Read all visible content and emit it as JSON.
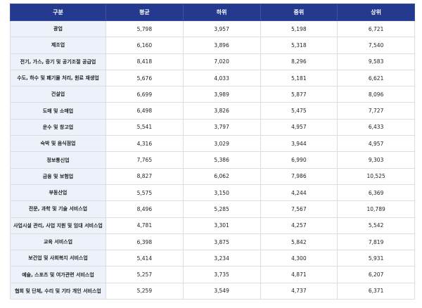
{
  "table": {
    "header": [
      "구분",
      "평균",
      "하위",
      "중위",
      "상위"
    ],
    "rows": [
      [
        "광업",
        "5,798",
        "3,957",
        "5,198",
        "6,721"
      ],
      [
        "제조업",
        "6,160",
        "3,896",
        "5,318",
        "7,540"
      ],
      [
        "전기, 가스, 증기 및 공기조절 공급업",
        "8,418",
        "7,020",
        "8,296",
        "9,583"
      ],
      [
        "수도, 하수 및 폐기물 처리, 원료 재생업",
        "5,676",
        "4,033",
        "5,181",
        "6,621"
      ],
      [
        "건설업",
        "6,699",
        "3,989",
        "5,877",
        "8,096"
      ],
      [
        "도매 및 소매업",
        "6,498",
        "3,826",
        "5,475",
        "7,727"
      ],
      [
        "운수 및 창고업",
        "5,541",
        "3,797",
        "4,957",
        "6,433"
      ],
      [
        "숙박 및 음식점업",
        "4,316",
        "3,029",
        "3,944",
        "4,957"
      ],
      [
        "정보통신업",
        "7,765",
        "5,386",
        "6,990",
        "9,303"
      ],
      [
        "금융 및 보험업",
        "8,827",
        "6,062",
        "7,986",
        "10,525"
      ],
      [
        "부동산업",
        "5,575",
        "3,150",
        "4,244",
        "6,369"
      ],
      [
        "전문, 과학 및 기술 서비스업",
        "8,496",
        "5,285",
        "7,567",
        "10,789"
      ],
      [
        "사업시설 관리, 사업 지원 및 임대 서비스업",
        "4,781",
        "3,301",
        "4,257",
        "5,542"
      ],
      [
        "교육 서비스업",
        "6,398",
        "3,875",
        "5,842",
        "7,819"
      ],
      [
        "보건업 및 사회복지 서비스업",
        "5,414",
        "3,234",
        "4,300",
        "5,931"
      ],
      [
        "예술, 스포츠 및 여가관련 서비스업",
        "5,257",
        "3,735",
        "4,871",
        "6,207"
      ],
      [
        "협회 및 단체, 수리 및 기타 개인 서비스업",
        "5,259",
        "3,549",
        "4,737",
        "6,371"
      ]
    ]
  }
}
